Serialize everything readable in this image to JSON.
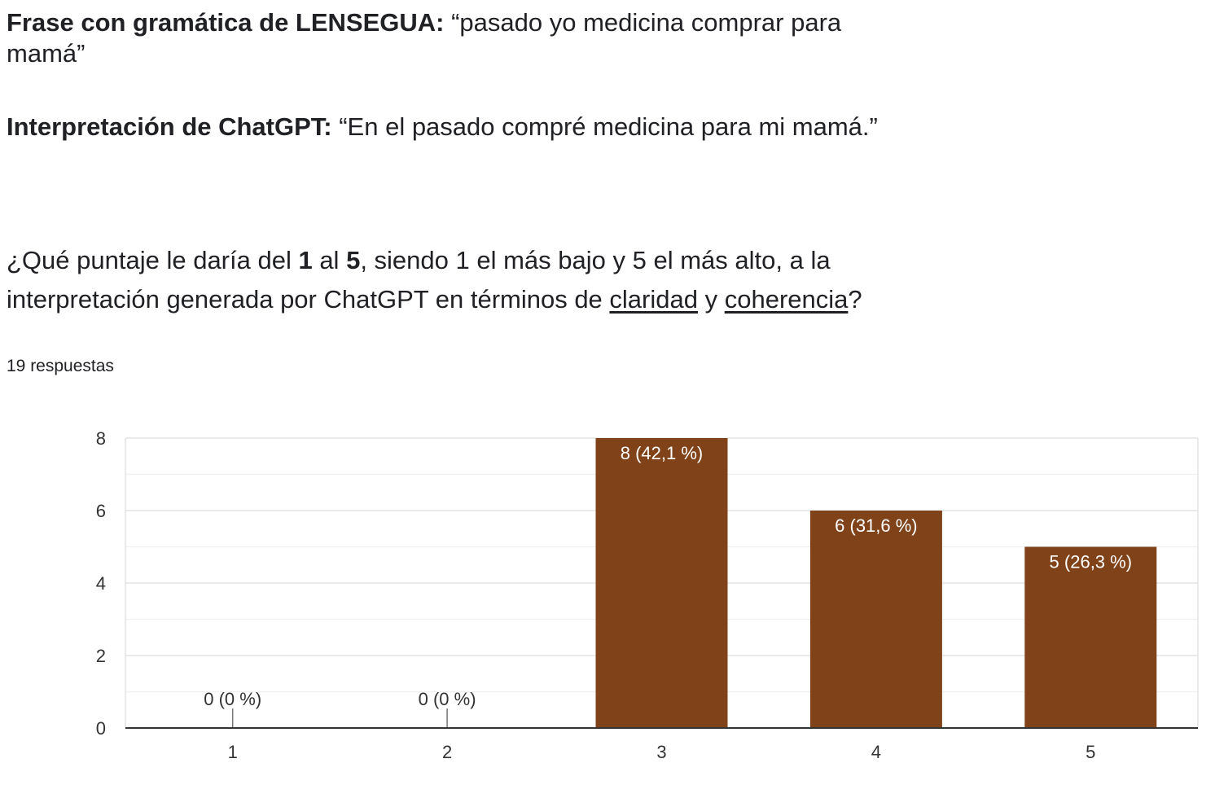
{
  "phrase": {
    "label": "Frase con gramática de LENSEGUA:",
    "text": " “pasado yo medicina comprar para mamá”"
  },
  "interpretation": {
    "label": "Interpretación de ChatGPT:",
    "text": " “En el pasado compré medicina para mi mamá.”"
  },
  "question": {
    "part1": "¿Qué puntaje le daría del ",
    "bold1": "1",
    "part2": " al ",
    "bold2": "5",
    "part3": ", siendo 1 el más bajo y 5 el más alto, a la interpretación generada por ChatGPT en términos de ",
    "link1": "claridad",
    "part4": " y ",
    "link2": "coherencia",
    "part5": "?"
  },
  "responses_label": "19 respuestas",
  "colors": {
    "bar": "#7f4219",
    "grid": "#e5e5e5",
    "axis": "#333333",
    "text": "#202124"
  },
  "chart_data": {
    "type": "bar",
    "categories": [
      "1",
      "2",
      "3",
      "4",
      "5"
    ],
    "values": [
      0,
      0,
      8,
      6,
      5
    ],
    "data_labels": [
      "0 (0 %)",
      "0 (0 %)",
      "8 (42,1 %)",
      "6 (31,6 %)",
      "5 (26,3 %)"
    ],
    "y_ticks": [
      0,
      2,
      4,
      6,
      8
    ],
    "ylim": [
      0,
      8
    ],
    "grid": true,
    "legend": "none"
  }
}
